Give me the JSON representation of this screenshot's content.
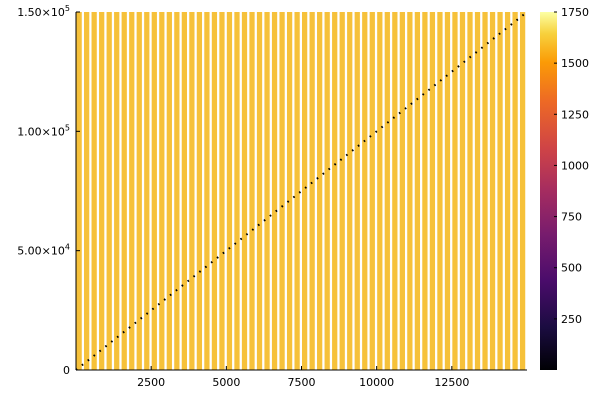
{
  "chart_data": {
    "type": "heatmap",
    "title": "",
    "xlabel": "",
    "ylabel": "",
    "xlim": [
      0,
      15000
    ],
    "ylim": [
      0,
      150000
    ],
    "x_ticks": [
      {
        "value": 2500,
        "label": "2500"
      },
      {
        "value": 5000,
        "label": "5000"
      },
      {
        "value": 7500,
        "label": "7500"
      },
      {
        "value": 10000,
        "label": "10000"
      },
      {
        "value": 12500,
        "label": "12500"
      }
    ],
    "y_ticks": [
      {
        "value": 0,
        "label": "0",
        "exp": ""
      },
      {
        "value": 50000,
        "label": "5.00×10",
        "exp": "4"
      },
      {
        "value": 100000,
        "label": "1.00×10",
        "exp": "5"
      },
      {
        "value": 150000,
        "label": "1.50×10",
        "exp": "5"
      }
    ],
    "colorbar": {
      "min": 0,
      "max": 1750,
      "colormap": "inferno",
      "ticks": [
        "250",
        "500",
        "750",
        "1000",
        "1250",
        "1500",
        "1750"
      ],
      "tick_values": [
        250,
        500,
        750,
        1000,
        1250,
        1500,
        1750
      ]
    },
    "columns": {
      "count": 60,
      "value": 1540,
      "color": "#f6c13a"
    },
    "diagonal": {
      "from": [
        0,
        0
      ],
      "to": [
        15000,
        150000
      ],
      "value": 0,
      "color": "#000000"
    },
    "grid": false,
    "legend": "colorbar-right"
  }
}
